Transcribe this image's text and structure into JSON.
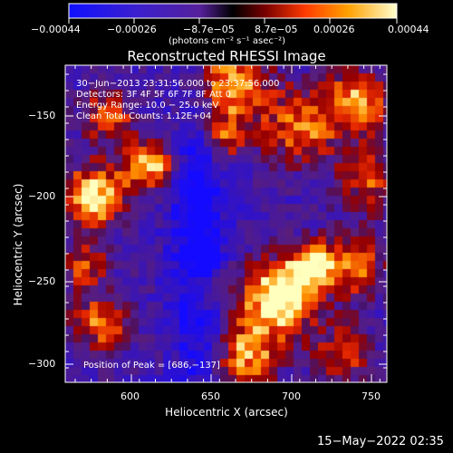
{
  "colorbar": {
    "tick_labels": [
      "−0.00044",
      "−0.00026",
      "−8.7e−05",
      "8.7e−05",
      "0.00026",
      "0.00044"
    ],
    "units_label": "(photons cm⁻² s⁻¹ asec⁻²)"
  },
  "plot": {
    "title": "Reconstructed RHESSI Image",
    "x_axis_label": "Heliocentric X (arcsec)",
    "y_axis_label": "Heliocentric Y (arcsec)",
    "x_tick_labels": [
      "600",
      "650",
      "700",
      "750"
    ],
    "y_tick_labels": [
      "−150",
      "−200",
      "−250",
      "−300"
    ]
  },
  "annotations": {
    "time_range": "30−Jun−2013 23:31:56.000 to 23:37:56.000",
    "detectors": "Detectors: 3F 4F 5F 6F 7F 8F  Att 0",
    "energy_range": "Energy Range: 10.0 − 25.0 keV",
    "method_counts": "Clean    Total Counts: 1.12E+04",
    "peak_position": "Position of Peak = [686,−137]"
  },
  "footer": {
    "timestamp": "15−May−2022 02:35"
  },
  "colors": {
    "background": "#000000",
    "text": "#ffffff"
  }
}
